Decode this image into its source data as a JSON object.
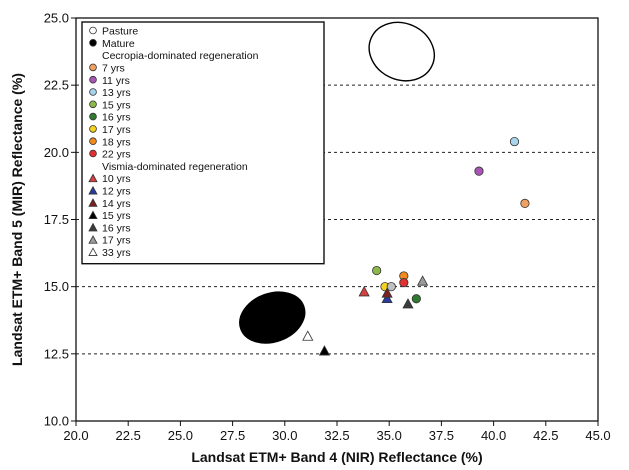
{
  "chart_data": {
    "type": "scatter",
    "title": "",
    "xlabel": "Landsat ETM+ Band 4 (NIR) Reflectance (%)",
    "ylabel": "Landsat ETM+ Band 5 (MIR) Reflectance (%)",
    "xlim": [
      20.0,
      45.0
    ],
    "ylim": [
      10.0,
      25.0
    ],
    "x_ticks": [
      "20.0",
      "22.5",
      "25.0",
      "27.5",
      "30.0",
      "32.5",
      "35.0",
      "37.5",
      "40.0",
      "42.5",
      "45.0"
    ],
    "y_ticks": [
      "10.0",
      "12.5",
      "15.0",
      "17.5",
      "20.0",
      "22.5",
      "25.0"
    ],
    "grid": "horizontal dashed",
    "legend_position": "top-left",
    "legend": [
      {
        "text": "Pasture",
        "marker": "circle",
        "color": "#ffffff"
      },
      {
        "text": "Mature",
        "marker": "circle",
        "color": "#000000"
      },
      {
        "text": "Cecropia-dominated regeneration",
        "marker": "none",
        "color": ""
      },
      {
        "text": "7 yrs",
        "marker": "circle",
        "color": "#f0a060"
      },
      {
        "text": "11 yrs",
        "marker": "circle",
        "color": "#a855b5"
      },
      {
        "text": "13 yrs",
        "marker": "circle",
        "color": "#a8d4ee"
      },
      {
        "text": "15 yrs",
        "marker": "circle",
        "color": "#8cb84a"
      },
      {
        "text": "16 yrs",
        "marker": "circle",
        "color": "#2f7a2f"
      },
      {
        "text": "17 yrs",
        "marker": "circle",
        "color": "#f5d21c"
      },
      {
        "text": "18 yrs",
        "marker": "circle",
        "color": "#f08a1e"
      },
      {
        "text": "22 yrs",
        "marker": "circle",
        "color": "#e03030"
      },
      {
        "text": "Vismia-dominated regeneration",
        "marker": "none",
        "color": ""
      },
      {
        "text": "10 yrs",
        "marker": "triangle",
        "color": "#d84040"
      },
      {
        "text": "12 yrs",
        "marker": "triangle",
        "color": "#283c9c"
      },
      {
        "text": "14 yrs",
        "marker": "triangle",
        "color": "#7a2020"
      },
      {
        "text": "15 yrs",
        "marker": "triangle",
        "color": "#000000"
      },
      {
        "text": "16 yrs",
        "marker": "triangle",
        "color": "#3c3c3c"
      },
      {
        "text": "17 yrs",
        "marker": "triangle",
        "color": "#9a9a9a"
      },
      {
        "text": "33 yrs",
        "marker": "triangle",
        "color": "#ffffff"
      }
    ],
    "ellipses": [
      {
        "name": "Pasture",
        "cx": 35.6,
        "cy": 23.75,
        "rx": 1.6,
        "ry": 1.05,
        "rotate": 25,
        "fill": "#ffffff"
      },
      {
        "name": "Mature",
        "cx": 29.4,
        "cy": 13.85,
        "rx": 1.6,
        "ry": 0.9,
        "rotate": -20,
        "fill": "#000000"
      }
    ],
    "series": [
      {
        "name": "7 yrs",
        "marker": "circle",
        "color": "#f0a060",
        "points": [
          [
            41.5,
            18.1
          ]
        ]
      },
      {
        "name": "11 yrs",
        "marker": "circle",
        "color": "#a855b5",
        "points": [
          [
            39.3,
            19.3
          ]
        ]
      },
      {
        "name": "13 yrs",
        "marker": "circle",
        "color": "#a8d4ee",
        "points": [
          [
            41.0,
            20.4
          ]
        ]
      },
      {
        "name": "15 yrs",
        "marker": "circle",
        "color": "#8cb84a",
        "points": [
          [
            34.4,
            15.6
          ]
        ]
      },
      {
        "name": "16 yrs",
        "marker": "circle",
        "color": "#2f7a2f",
        "points": [
          [
            36.3,
            14.55
          ]
        ]
      },
      {
        "name": "17 yrs",
        "marker": "circle",
        "color": "#f5d21c",
        "points": [
          [
            34.8,
            15.0
          ]
        ]
      },
      {
        "name": "18 yrs",
        "marker": "circle",
        "color": "#f08a1e",
        "points": [
          [
            35.7,
            15.4
          ]
        ]
      },
      {
        "name": "22 yrs",
        "marker": "circle",
        "color": "#e03030",
        "points": [
          [
            35.7,
            15.15
          ]
        ]
      },
      {
        "name": "10 yrs",
        "marker": "triangle",
        "color": "#d84040",
        "points": [
          [
            33.8,
            14.8
          ]
        ]
      },
      {
        "name": "12 yrs",
        "marker": "triangle",
        "color": "#283c9c",
        "points": [
          [
            34.9,
            14.55
          ]
        ]
      },
      {
        "name": "14 yrs",
        "marker": "triangle",
        "color": "#7a2020",
        "points": [
          [
            34.9,
            14.75
          ]
        ]
      },
      {
        "name": "15 yrs",
        "marker": "triangle",
        "color": "#000000",
        "points": [
          [
            31.9,
            12.6
          ]
        ]
      },
      {
        "name": "16 yrs",
        "marker": "triangle",
        "color": "#3c3c3c",
        "points": [
          [
            35.9,
            14.35
          ]
        ]
      },
      {
        "name": "17 yrs",
        "marker": "triangle",
        "color": "#9a9a9a",
        "points": [
          [
            36.6,
            15.2
          ]
        ]
      },
      {
        "name": "33 yrs",
        "marker": "triangle",
        "color": "#ffffff",
        "points": [
          [
            31.1,
            13.15
          ]
        ]
      },
      {
        "name": "",
        "marker": "circle",
        "color": "#c0c0c0",
        "points": [
          [
            35.1,
            15.0
          ]
        ]
      }
    ]
  }
}
